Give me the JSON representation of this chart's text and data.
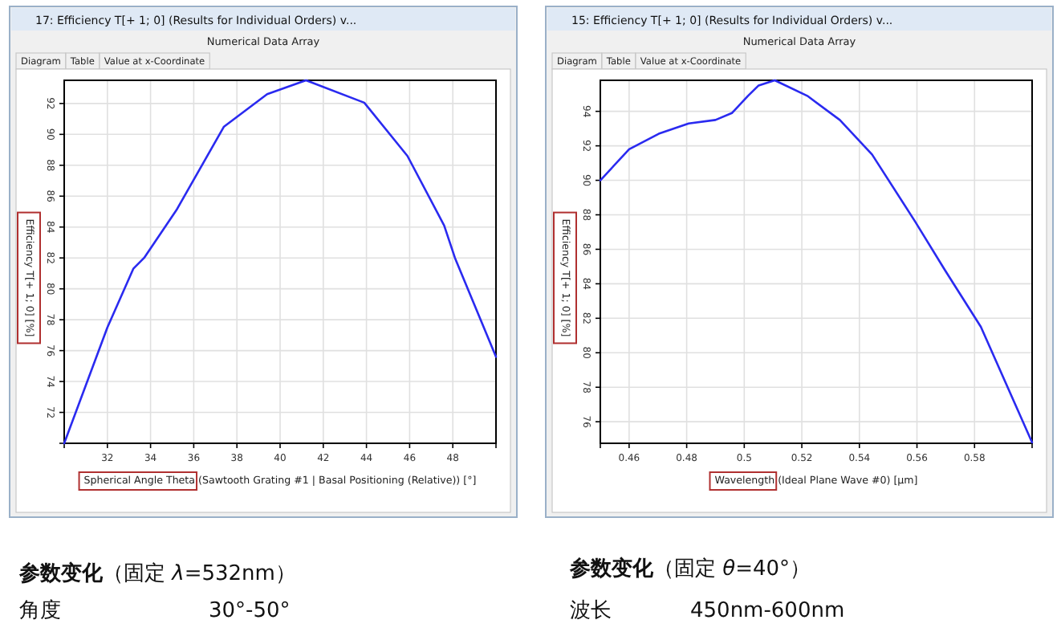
{
  "chart_data": [
    {
      "type": "line",
      "title": "17: Efficiency T[+ 1; 0] (Results for Individual Orders) v...",
      "subtitle": "Numerical Data Array",
      "xlabel": "Spherical Angle Theta (Sawtooth Grating #1 | Basal Positioning (Relative)) [°]",
      "ylabel": "Efficiency T[+ 1; 0] [%]",
      "color": "#2a2af0",
      "grid": true,
      "x": [
        30,
        32,
        33.2,
        33.7,
        35.2,
        37.4,
        39.4,
        41.2,
        43.9,
        45.9,
        47.6,
        48.1,
        50
      ],
      "values": [
        70,
        77.5,
        81.3,
        82,
        85.1,
        90.5,
        92.6,
        93.5,
        92.05,
        88.6,
        84.1,
        82,
        75.6
      ],
      "xlim": [
        30,
        50
      ],
      "ylim": [
        70,
        93.5
      ],
      "xticks": [
        {
          "value": 30,
          "label": null
        },
        32,
        34,
        36,
        38,
        40,
        42,
        44,
        46,
        48,
        {
          "value": 50,
          "label": null
        }
      ],
      "yticks": [
        {
          "value": 70,
          "label": null
        },
        72,
        74,
        76,
        78,
        80,
        82,
        84,
        86,
        88,
        90,
        92
      ],
      "annotations": [
        "Diagram",
        "Table",
        "Value at x-Coordinate",
        "**参数变化**（固定 *λ*=532nm）",
        "角度",
        "30°-50°"
      ]
    },
    {
      "type": "line",
      "title": "15: Efficiency T[+ 1; 0] (Results for Individual Orders) v...",
      "subtitle": "Numerical Data Array",
      "xlabel": "Wavelength (Ideal Plane Wave #0) [µm]",
      "ylabel": "Efficiency T[+ 1; 0] [%]",
      "color": "#2a2af0",
      "grid": true,
      "x": [
        0.45,
        0.46,
        0.4703,
        0.4807,
        0.49,
        0.4957,
        0.5013,
        0.505,
        0.5106,
        0.5219,
        0.5332,
        0.5444,
        0.5594,
        0.5697,
        0.5822,
        0.6
      ],
      "values": [
        90,
        91.8,
        92.7,
        93.3,
        93.5,
        93.9,
        94.9,
        95.5,
        95.8,
        94.9,
        93.5,
        91.5,
        87.6,
        84.8,
        81.5,
        74.8
      ],
      "xlim": [
        0.45,
        0.6
      ],
      "ylim": [
        74.75,
        95.8
      ],
      "xticks": [
        {
          "value": 0.45,
          "label": null
        },
        0.46,
        0.48,
        0.5,
        0.52,
        0.54,
        0.56,
        0.58,
        {
          "value": 0.6,
          "label": null
        }
      ],
      "yticks": [
        76,
        78,
        80,
        82,
        84,
        86,
        88,
        90,
        92,
        94
      ],
      "annotations": [
        "Diagram",
        "Table",
        "Value at x-Coordinate",
        "**参数变化**（固定 *θ*=40°）",
        "波长",
        "450nm-600nm"
      ]
    }
  ]
}
